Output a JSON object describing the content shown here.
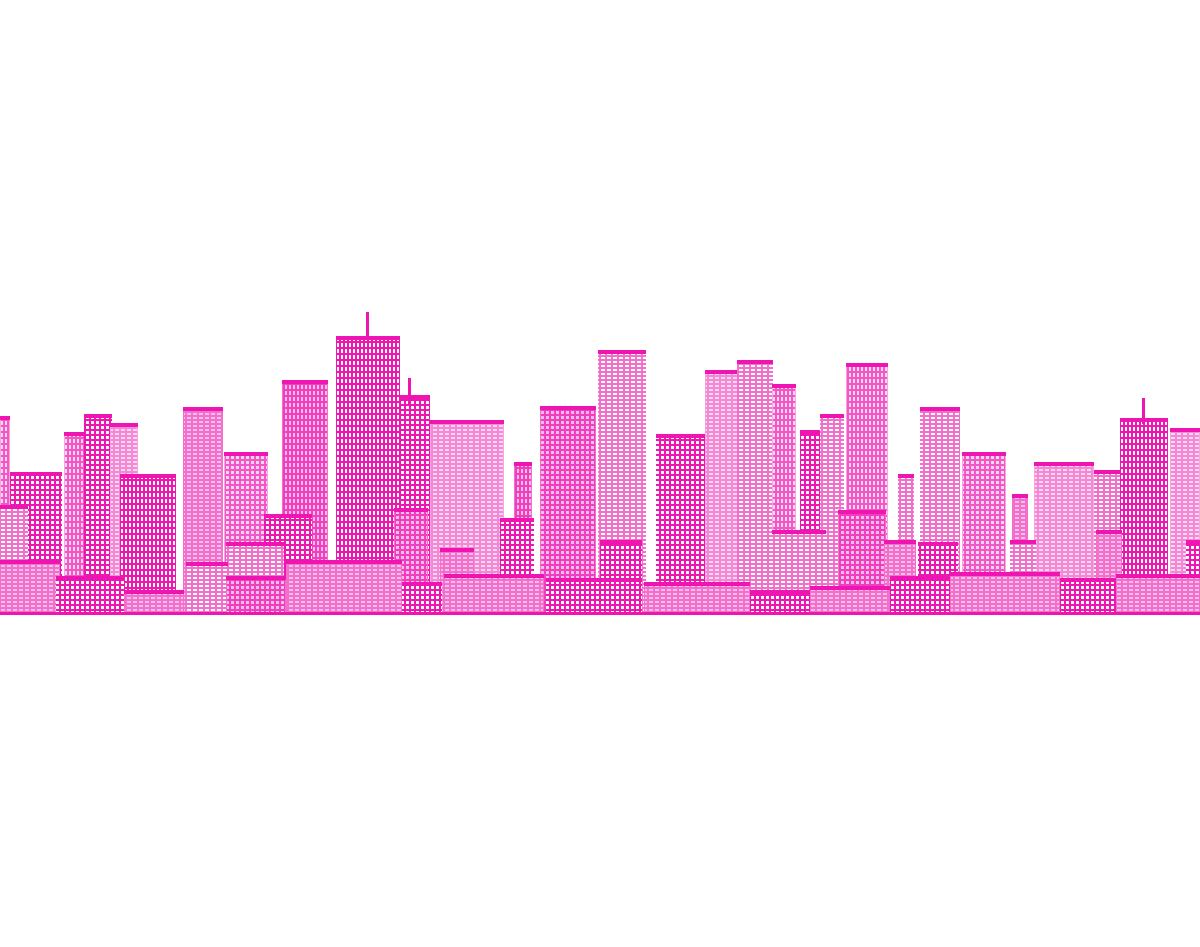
{
  "image": {
    "subject": "city-skyline",
    "colors": {
      "background": "#ffffff",
      "primary": "#ee15b3",
      "light": "#f26fcc",
      "pale": "#f7a6df",
      "window": "#ffffff"
    }
  }
}
